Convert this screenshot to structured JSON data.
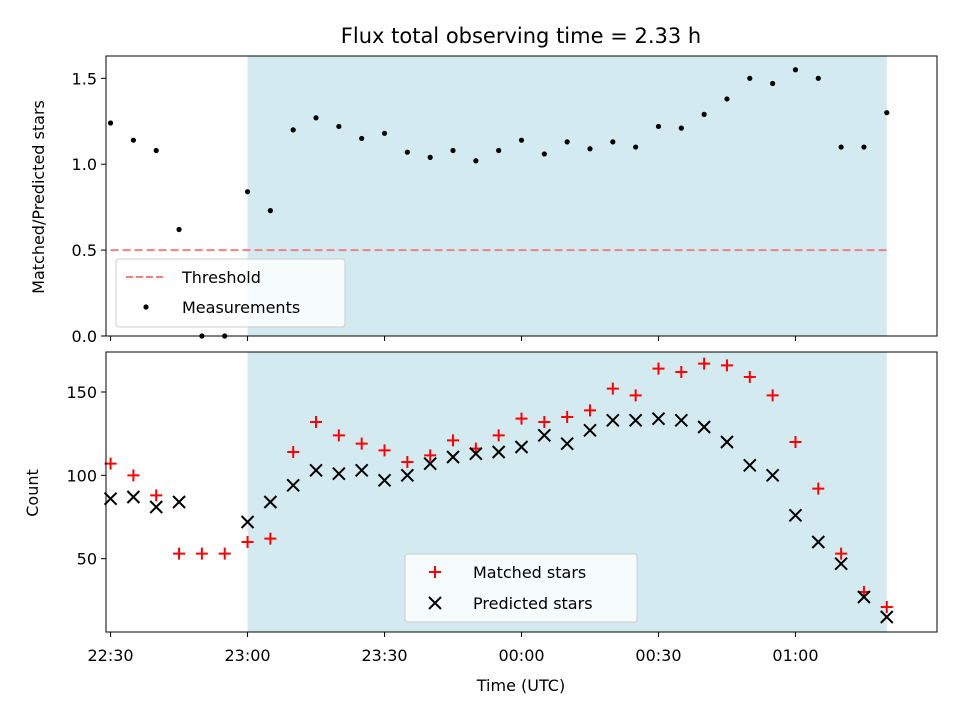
{
  "chart_data": {
    "title": "Flux total observing time = 2.33 h",
    "xlabel": "Time (UTC)",
    "x_tick_labels": [
      "22:30",
      "23:00",
      "23:30",
      "00:00",
      "00:30",
      "01:00"
    ],
    "x_ticks": [
      "22:30",
      "23:00",
      "23:30",
      "00:00",
      "00:30",
      "01:00"
    ],
    "x_range": [
      "22:29",
      "01:31"
    ],
    "highlight_span": [
      "23:00",
      "01:20"
    ],
    "highlight_color": "#d3eaf0",
    "times": [
      "22:30",
      "22:35",
      "22:40",
      "22:45",
      "22:50",
      "22:55",
      "23:00",
      "23:05",
      "23:10",
      "23:15",
      "23:20",
      "23:25",
      "23:30",
      "23:35",
      "23:40",
      "23:45",
      "23:50",
      "23:55",
      "00:00",
      "00:05",
      "00:10",
      "00:15",
      "00:20",
      "00:25",
      "00:30",
      "00:35",
      "00:40",
      "00:45",
      "00:50",
      "00:55",
      "01:00",
      "01:05",
      "01:10",
      "01:15",
      "01:20"
    ],
    "panels": [
      {
        "type": "scatter",
        "ylabel": "Matched/Predicted stars",
        "ylim": [
          0,
          1.63
        ],
        "y_ticks": [
          0.0,
          0.5,
          1.0,
          1.5
        ],
        "y_tick_labels": [
          "0.0",
          "0.5",
          "1.0",
          "1.5"
        ],
        "threshold": {
          "name": "Threshold",
          "value": 0.5,
          "x_start": "22:30",
          "x_end": "01:20",
          "color": "#f08080"
        },
        "series": [
          {
            "name": "Measurements",
            "color": "#000000",
            "values": [
              1.24,
              1.14,
              1.08,
              0.62,
              0.0,
              0.0,
              0.84,
              0.73,
              1.2,
              1.27,
              1.22,
              1.15,
              1.18,
              1.07,
              1.04,
              1.08,
              1.02,
              1.08,
              1.14,
              1.06,
              1.13,
              1.09,
              1.13,
              1.1,
              1.22,
              1.21,
              1.29,
              1.38,
              1.5,
              1.47,
              1.55,
              1.5,
              1.1,
              1.1,
              1.3
            ]
          }
        ],
        "legend": {
          "position": "lower-left",
          "entries": [
            "Threshold",
            "Measurements"
          ]
        }
      },
      {
        "type": "scatter",
        "ylabel": "Count",
        "ylim": [
          6,
          174
        ],
        "y_ticks": [
          50,
          100,
          150
        ],
        "y_tick_labels": [
          "50",
          "100",
          "150"
        ],
        "series": [
          {
            "name": "Matched stars",
            "marker": "plus",
            "color": "#ff0000",
            "values": [
              107,
              100,
              88,
              53,
              53,
              53,
              60,
              62,
              114,
              132,
              124,
              119,
              115,
              108,
              112,
              121,
              116,
              124,
              134,
              132,
              135,
              139,
              152,
              148,
              164,
              162,
              167,
              166,
              159,
              148,
              120,
              92,
              53,
              30,
              21
            ]
          },
          {
            "name": "Predicted stars",
            "marker": "x",
            "color": "#000000",
            "values": [
              86,
              87,
              81,
              84,
              null,
              null,
              72,
              84,
              94,
              103,
              101,
              103,
              97,
              100,
              107,
              111,
              113,
              114,
              117,
              124,
              119,
              127,
              133,
              133,
              134,
              133,
              129,
              120,
              106,
              100,
              76,
              60,
              47,
              27,
              15
            ]
          }
        ],
        "legend": {
          "position": "lower-center",
          "entries": [
            "Matched stars",
            "Predicted stars"
          ]
        }
      }
    ]
  }
}
